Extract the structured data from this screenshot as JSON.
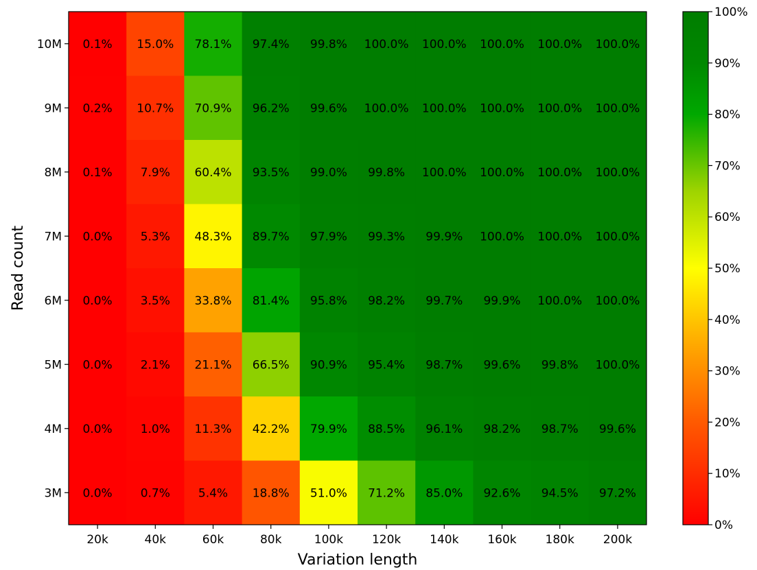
{
  "chart_data": {
    "type": "heatmap",
    "xlabel": "Variation length",
    "ylabel": "Read count",
    "x_categories": [
      "20k",
      "40k",
      "60k",
      "80k",
      "100k",
      "120k",
      "140k",
      "160k",
      "180k",
      "200k"
    ],
    "y_categories": [
      "10M",
      "9M",
      "8M",
      "7M",
      "6M",
      "5M",
      "4M",
      "3M"
    ],
    "values": [
      [
        0.1,
        15.0,
        78.1,
        97.4,
        99.8,
        100.0,
        100.0,
        100.0,
        100.0,
        100.0
      ],
      [
        0.2,
        10.7,
        70.9,
        96.2,
        99.6,
        100.0,
        100.0,
        100.0,
        100.0,
        100.0
      ],
      [
        0.1,
        7.9,
        60.4,
        93.5,
        99.0,
        99.8,
        100.0,
        100.0,
        100.0,
        100.0
      ],
      [
        0.0,
        5.3,
        48.3,
        89.7,
        97.9,
        99.3,
        99.9,
        100.0,
        100.0,
        100.0
      ],
      [
        0.0,
        3.5,
        33.8,
        81.4,
        95.8,
        98.2,
        99.7,
        99.9,
        100.0,
        100.0
      ],
      [
        0.0,
        2.1,
        21.1,
        66.5,
        90.9,
        95.4,
        98.7,
        99.6,
        99.8,
        100.0
      ],
      [
        0.0,
        1.0,
        11.3,
        42.2,
        79.9,
        88.5,
        96.1,
        98.2,
        98.7,
        99.6
      ],
      [
        0.0,
        0.7,
        5.4,
        18.8,
        51.0,
        71.2,
        85.0,
        92.6,
        94.5,
        97.2
      ]
    ],
    "value_range": [
      0,
      100
    ],
    "colorbar": {
      "ticks": [
        0,
        10,
        20,
        30,
        40,
        50,
        60,
        70,
        80,
        90,
        100
      ],
      "tick_labels": [
        "0%",
        "10%",
        "20%",
        "30%",
        "40%",
        "50%",
        "60%",
        "70%",
        "80%",
        "90%",
        "100%"
      ],
      "colormap_stops": [
        {
          "value": 0,
          "color": "#ff0000"
        },
        {
          "value": 20,
          "color": "#ff5a00"
        },
        {
          "value": 35,
          "color": "#ffa800"
        },
        {
          "value": 50,
          "color": "#ffff00"
        },
        {
          "value": 65,
          "color": "#9ed400"
        },
        {
          "value": 80,
          "color": "#00a800"
        },
        {
          "value": 90,
          "color": "#008800"
        },
        {
          "value": 100,
          "color": "#007d00"
        }
      ]
    },
    "grid": false
  }
}
